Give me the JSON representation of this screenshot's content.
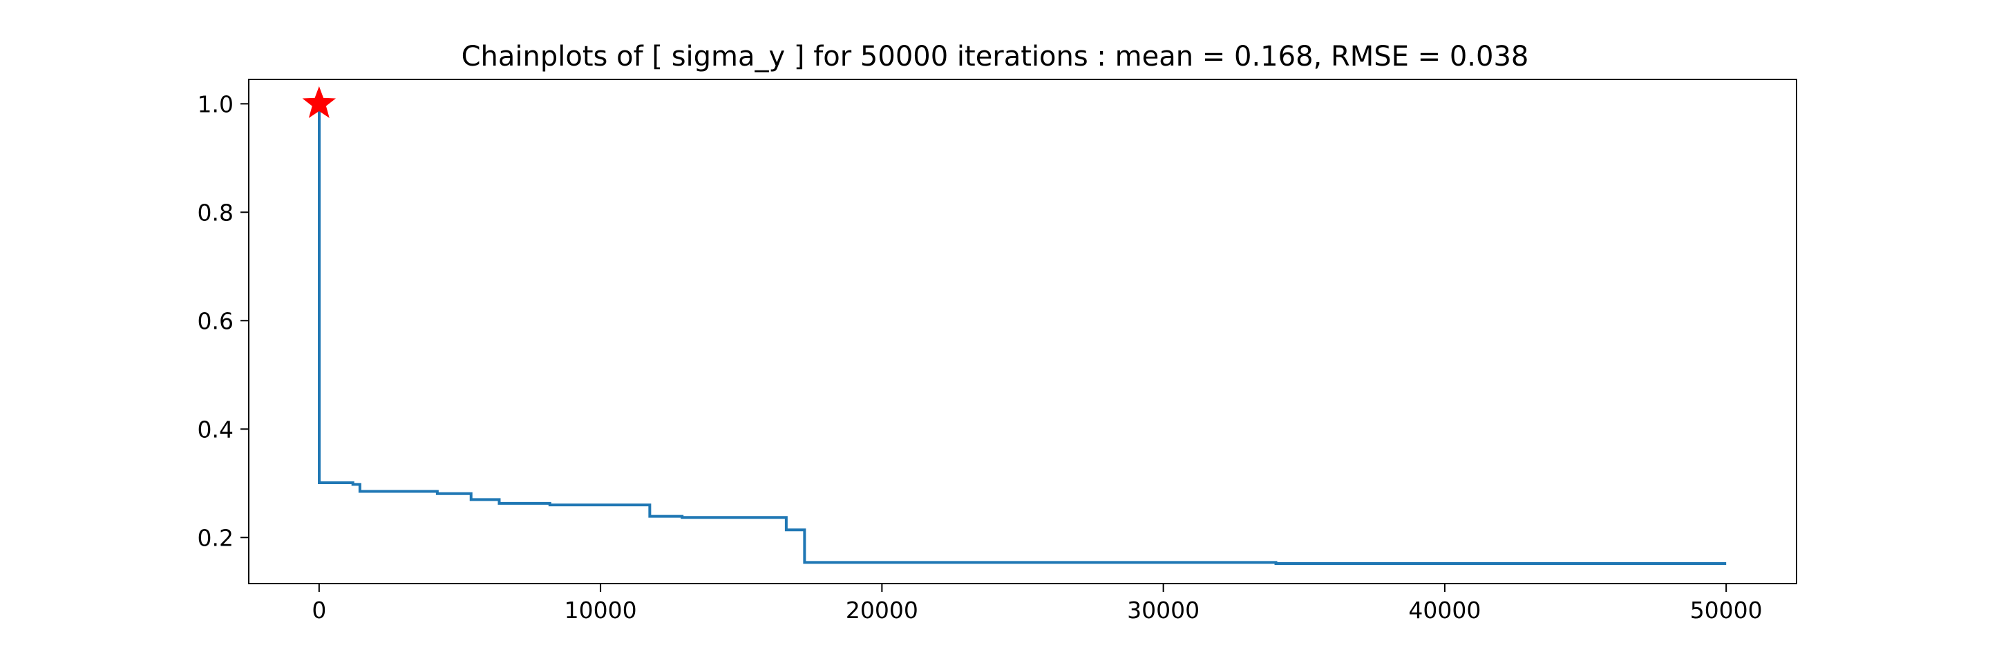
{
  "chart_data": {
    "type": "line",
    "title": "Chainplots of [ sigma_y ] for 50000 iterations : mean = 0.168, RMSE = 0.038",
    "xlabel": "",
    "ylabel": "",
    "xlim": [
      -2500,
      52500
    ],
    "ylim": [
      0.115,
      1.045
    ],
    "xticks": [
      0,
      10000,
      20000,
      30000,
      40000,
      50000
    ],
    "xtick_labels": [
      "0",
      "10000",
      "20000",
      "30000",
      "40000",
      "50000"
    ],
    "yticks": [
      0.2,
      0.4,
      0.6,
      0.8,
      1.0
    ],
    "ytick_labels": [
      "0.2",
      "0.4",
      "0.6",
      "0.8",
      "1.0"
    ],
    "grid": false,
    "series": [
      {
        "step": true,
        "x": [
          0,
          5,
          1200,
          1450,
          4200,
          5400,
          6400,
          8200,
          11750,
          12900,
          16600,
          17250,
          17300,
          34000,
          50000
        ],
        "y": [
          1.0,
          0.301,
          0.298,
          0.285,
          0.281,
          0.27,
          0.263,
          0.26,
          0.239,
          0.237,
          0.214,
          0.154,
          0.154,
          0.152,
          0.152
        ]
      }
    ],
    "start_marker": {
      "x": 0,
      "y": 1.0,
      "shape": "star",
      "color": "#ff0000"
    },
    "line_color": "#1f77b4"
  }
}
